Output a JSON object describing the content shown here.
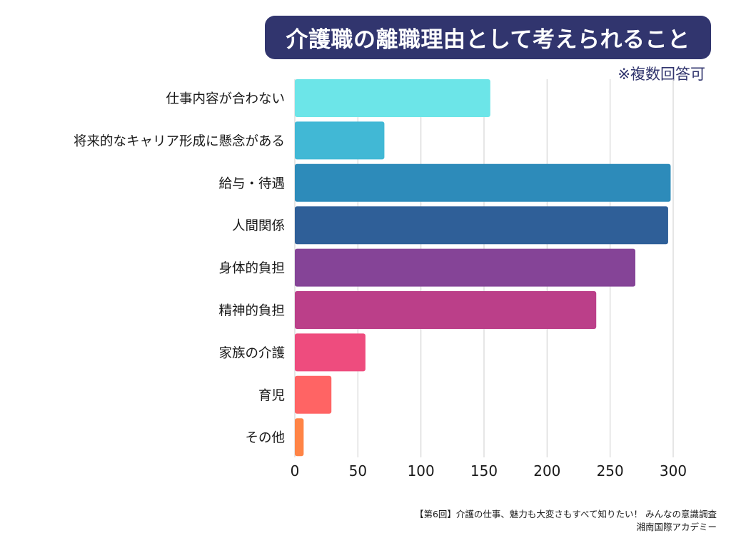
{
  "header": {
    "title": "介護職の離職理由として考えられること",
    "note": "※複数回答可"
  },
  "footer": {
    "source": "【第6回】介護の仕事、魅力も大変さもすべて知りたい！ みんなの意識調査",
    "publisher": "湘南国際アカデミー"
  },
  "chart_data": {
    "type": "bar",
    "orientation": "horizontal",
    "title": "介護職の離職理由として考えられること",
    "subtitle": "※複数回答可",
    "categories": [
      "仕事内容が合わない",
      "将来的なキャリア形成に懸念がある",
      "給与・待遇",
      "人間関係",
      "身体的負担",
      "精神的負担",
      "家族の介護",
      "育児",
      "その他"
    ],
    "values": [
      155,
      71,
      298,
      296,
      270,
      239,
      56,
      29,
      7
    ],
    "colors": [
      "#6ce5e8",
      "#41b8d5",
      "#2d8bba",
      "#2f5f98",
      "#854497",
      "#bb3f89",
      "#ee4c7e",
      "#ff6464",
      "#ff8446"
    ],
    "xlim": [
      0,
      300
    ],
    "xticks": [
      "0",
      "50",
      "100",
      "150",
      "200",
      "250",
      "300"
    ],
    "xtick_values": [
      0,
      50,
      100,
      150,
      200,
      250,
      300
    ],
    "xlabel": "",
    "ylabel": "",
    "grid": "vertical",
    "legend": "none"
  }
}
